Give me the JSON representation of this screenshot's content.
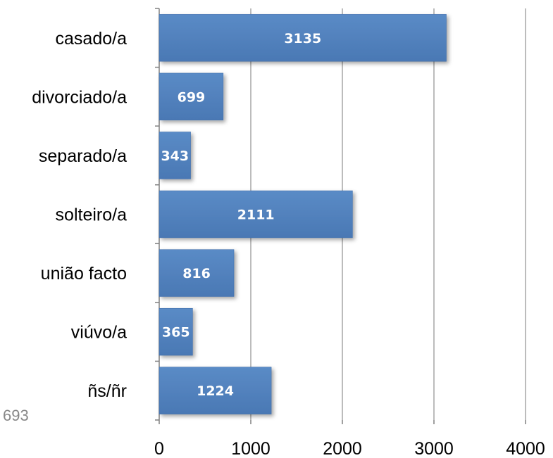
{
  "chart_data": {
    "type": "bar",
    "orientation": "horizontal",
    "categories": [
      "casado/a",
      "divorciado/a",
      "separado/a",
      "solteiro/a",
      "união facto",
      "viúvo/a",
      "ñs/ñr"
    ],
    "values": [
      3135,
      699,
      343,
      2111,
      816,
      365,
      1224
    ],
    "xlim": [
      0,
      4000
    ],
    "xticks": [
      0,
      1000,
      2000,
      3000,
      4000
    ],
    "grid": true,
    "legend": "none",
    "bar_color": "#4F81BD"
  },
  "stray_text": "693"
}
